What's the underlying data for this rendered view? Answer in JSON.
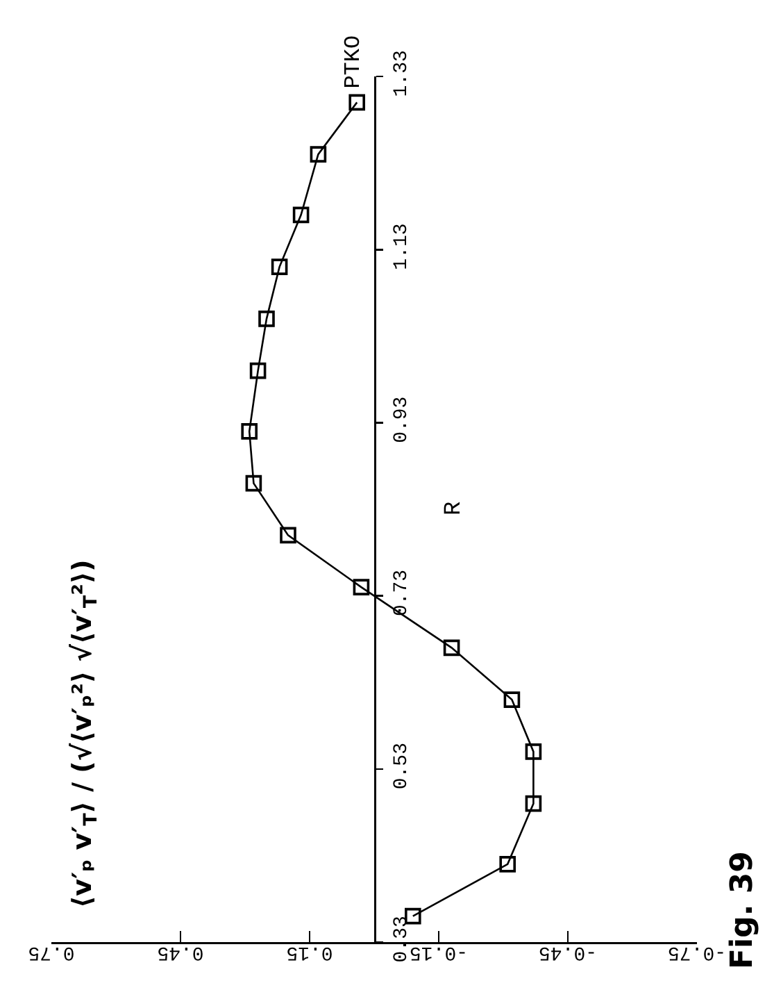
{
  "chart_data": {
    "type": "line",
    "title": "⟨v′ₚ v′$_{T}$⟩ / (√⟨v′ₚ²⟩ √⟨v′$_{T}$²⟩)",
    "ylabel": "R",
    "annotations": [
      "Fig. 39"
    ],
    "x": [
      -0.09,
      -0.31,
      -0.37,
      -0.37,
      -0.32,
      -0.18,
      0.03,
      0.2,
      0.28,
      0.29,
      0.27,
      0.25,
      0.22,
      0.17,
      0.13,
      0.04
    ],
    "series": [
      {
        "name": "PTKO",
        "color": "#000000",
        "values": [
          0.36,
          0.42,
          0.49,
          0.55,
          0.61,
          0.67,
          0.74,
          0.8,
          0.86,
          0.92,
          0.99,
          1.05,
          1.11,
          1.17,
          1.24,
          1.3
        ]
      }
    ],
    "xlim": [
      0.75,
      -0.75
    ],
    "xticks": [
      0.75,
      0.45,
      0.15,
      -0.15,
      -0.45,
      -0.75
    ],
    "ylim": [
      0.33,
      1.33
    ],
    "yticks": [
      0.33,
      0.53,
      0.73,
      0.93,
      1.13,
      1.33
    ],
    "marker": "square",
    "line_style": "solid"
  }
}
